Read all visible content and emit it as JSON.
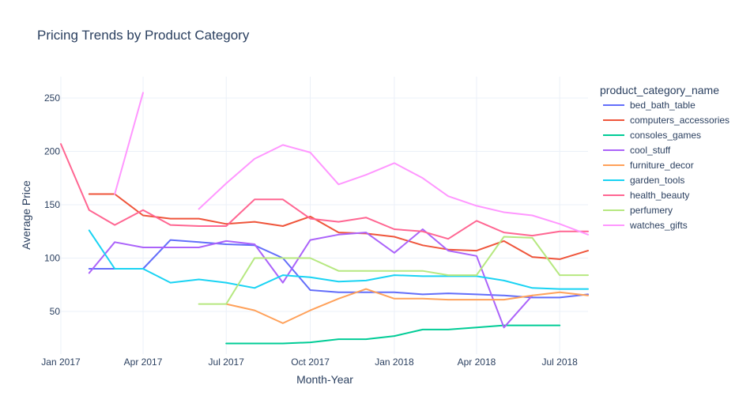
{
  "chart_data": {
    "type": "line",
    "title": "Pricing Trends by Product Category",
    "xlabel": "Month-Year",
    "ylabel": "Average Price",
    "legend_title": "product_category_name",
    "legend_position": "right",
    "grid": true,
    "xlim": [
      "2017-01-01",
      "2018-08-01"
    ],
    "ylim": [
      10,
      270
    ],
    "x_ticks": [
      {
        "value": "2017-01-01",
        "label": "Jan 2017"
      },
      {
        "value": "2017-04-01",
        "label": "Apr 2017"
      },
      {
        "value": "2017-07-01",
        "label": "Jul 2017"
      },
      {
        "value": "2017-10-01",
        "label": "Oct 2017"
      },
      {
        "value": "2018-01-01",
        "label": "Jan 2018"
      },
      {
        "value": "2018-04-01",
        "label": "Apr 2018"
      },
      {
        "value": "2018-07-01",
        "label": "Jul 2018"
      }
    ],
    "y_ticks": [
      50,
      100,
      150,
      200,
      250
    ],
    "x": [
      "2017-01-01",
      "2017-02-01",
      "2017-03-01",
      "2017-04-01",
      "2017-05-01",
      "2017-06-01",
      "2017-07-01",
      "2017-08-01",
      "2017-09-01",
      "2017-10-01",
      "2017-11-01",
      "2017-12-01",
      "2018-01-01",
      "2018-02-01",
      "2018-03-01",
      "2018-04-01",
      "2018-05-01",
      "2018-06-01",
      "2018-07-01",
      "2018-08-01"
    ],
    "series": [
      {
        "name": "bed_bath_table",
        "color": "#636efa",
        "values": [
          null,
          90,
          90,
          90,
          117,
          115,
          113,
          112,
          100,
          70,
          68,
          68,
          68,
          66,
          67,
          66,
          65,
          63,
          63,
          66
        ]
      },
      {
        "name": "computers_accessories",
        "color": "#ef553b",
        "values": [
          null,
          160,
          160,
          140,
          137,
          137,
          132,
          134,
          130,
          139,
          124,
          123,
          120,
          112,
          108,
          107,
          116,
          101,
          99,
          107
        ]
      },
      {
        "name": "consoles_games",
        "color": "#00cc96",
        "values": [
          null,
          null,
          null,
          null,
          null,
          null,
          20,
          20,
          20,
          21,
          24,
          24,
          27,
          33,
          33,
          35,
          37,
          37,
          37,
          null
        ]
      },
      {
        "name": "cool_stuff",
        "color": "#ab63fa",
        "values": [
          null,
          86,
          115,
          110,
          110,
          110,
          116,
          113,
          77,
          117,
          122,
          124,
          105,
          127,
          107,
          102,
          35,
          65,
          null,
          null
        ]
      },
      {
        "name": "furniture_decor",
        "color": "#ffa15a",
        "values": [
          null,
          null,
          null,
          null,
          null,
          null,
          57,
          51,
          39,
          51,
          62,
          71,
          62,
          62,
          61,
          61,
          61,
          65,
          68,
          65
        ]
      },
      {
        "name": "garden_tools",
        "color": "#19d3f3",
        "values": [
          null,
          126,
          90,
          90,
          77,
          80,
          77,
          72,
          84,
          82,
          78,
          79,
          84,
          83,
          83,
          83,
          79,
          72,
          71,
          71
        ]
      },
      {
        "name": "health_beauty",
        "color": "#ff6692",
        "values": [
          207,
          145,
          131,
          145,
          131,
          130,
          130,
          155,
          155,
          137,
          134,
          138,
          127,
          125,
          118,
          135,
          124,
          121,
          125,
          125
        ]
      },
      {
        "name": "perfumery",
        "color": "#b6e880",
        "values": [
          null,
          null,
          null,
          null,
          null,
          57,
          57,
          100,
          100,
          100,
          88,
          88,
          88,
          88,
          84,
          84,
          120,
          119,
          84,
          84
        ]
      },
      {
        "name": "watches_gifts",
        "color": "#ff97ff",
        "values": [
          null,
          null,
          160,
          255,
          null,
          146,
          170,
          193,
          206,
          199,
          169,
          178,
          189,
          175,
          158,
          149,
          143,
          140,
          132,
          122
        ]
      }
    ]
  }
}
